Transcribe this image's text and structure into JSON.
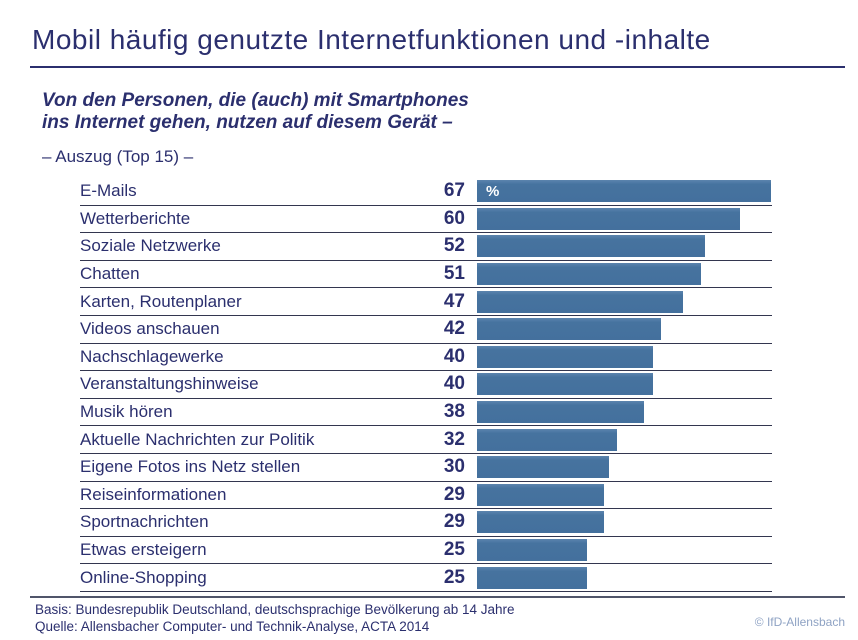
{
  "title": "Mobil häufig genutzte Internetfunktionen und -inhalte",
  "subtitle": {
    "line1": "Von den Personen, die (auch) mit Smartphones",
    "line2": "ins Internet gehen, nutzen auf diesem Gerät –"
  },
  "excerpt_note": "– Auszug (Top 15) –",
  "unit_label": "%",
  "footer": {
    "basis": "Basis: Bundesrepublik Deutschland, deutschsprachige Bevölkerung ab 14 Jahre",
    "quelle": "Quelle: Allensbacher Computer- und Technik-Analyse, ACTA 2014",
    "copyright": "© IfD-Allensbach"
  },
  "colors": {
    "bar": "#4573A2",
    "text": "#2B2F6E",
    "separator": "#33364F",
    "copyright": "#8FA3C4"
  },
  "chart_data": {
    "type": "bar",
    "orientation": "horizontal",
    "title": "Mobil häufig genutzte Internetfunktionen und -inhalte",
    "xlabel": "%",
    "xlim": [
      0,
      67
    ],
    "grid": false,
    "legend": false,
    "value_labels_shown": true,
    "categories": [
      "E-Mails",
      "Wetterberichte",
      "Soziale Netzwerke",
      "Chatten",
      "Karten, Routenplaner",
      "Videos anschauen",
      "Nachschlagewerke",
      "Veranstaltungshinweise",
      "Musik hören",
      "Aktuelle Nachrichten zur Politik",
      "Eigene Fotos ins Netz stellen",
      "Reiseinformationen",
      "Sportnachrichten",
      "Etwas ersteigern",
      "Online-Shopping"
    ],
    "values": [
      67,
      60,
      52,
      51,
      47,
      42,
      40,
      40,
      38,
      32,
      30,
      29,
      29,
      25,
      25
    ]
  }
}
